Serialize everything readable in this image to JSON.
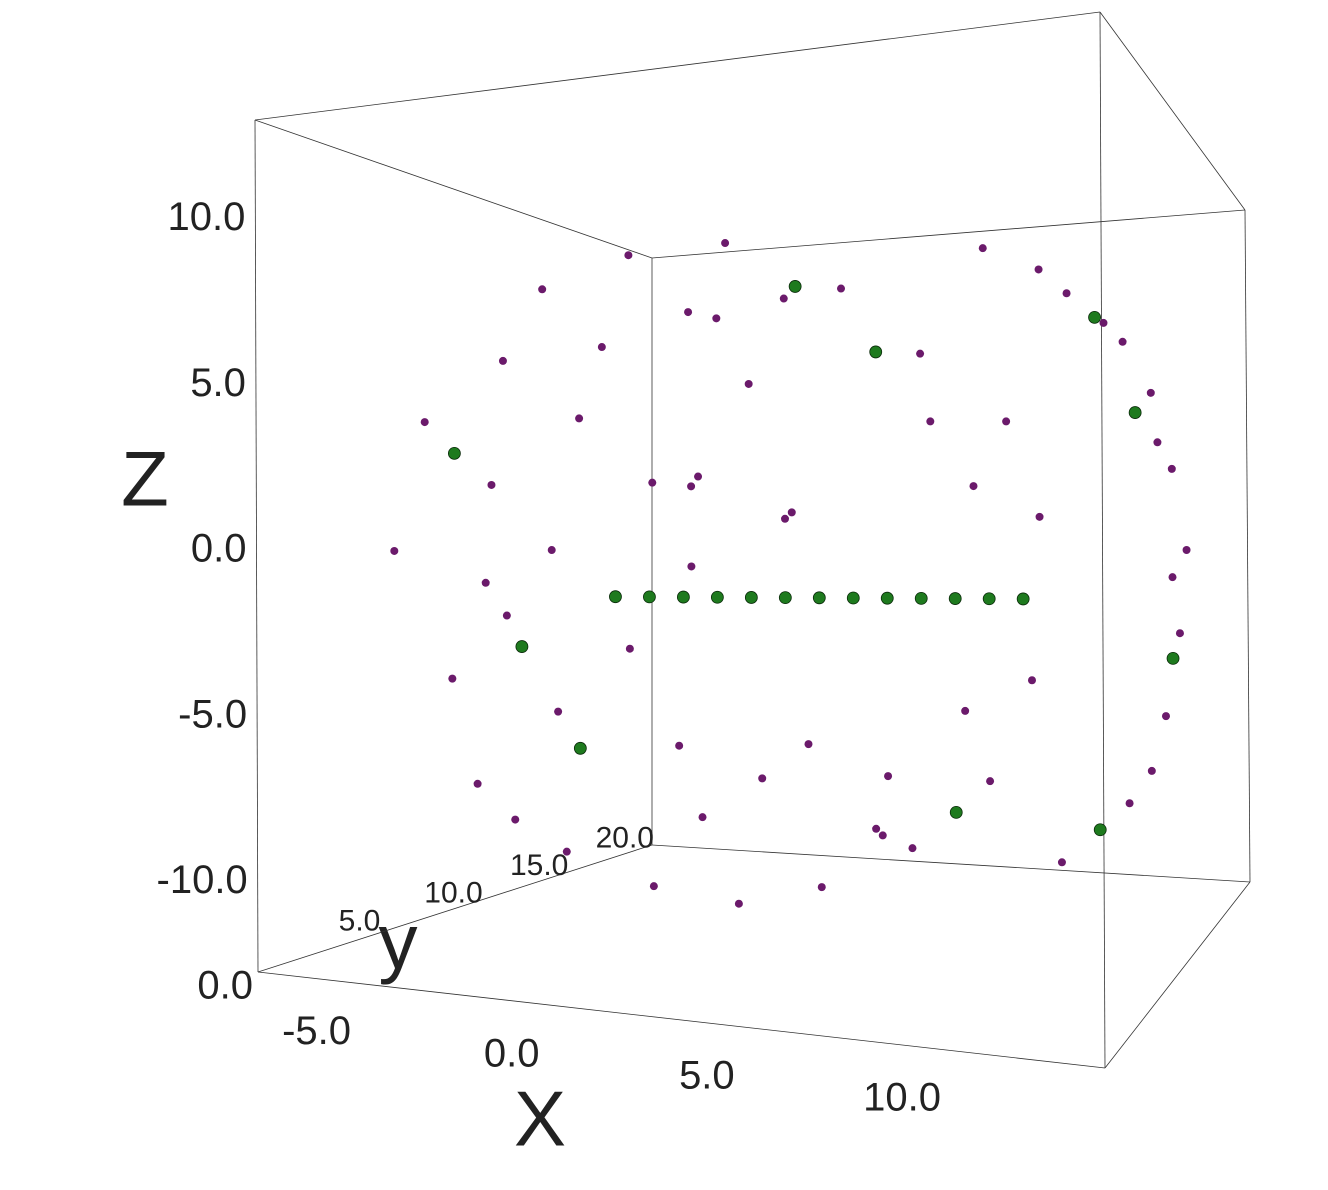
{
  "chart_data": {
    "type": "scatter3d",
    "xlabel": "X",
    "ylabel": "y",
    "zlabel": "Z",
    "xlim": [
      -6.5,
      15.2
    ],
    "ylim": [
      0,
      23
    ],
    "zlim": [
      -12.7,
      13
    ],
    "xticks": [
      {
        "value": -5,
        "label": "-5.0"
      },
      {
        "value": 0,
        "label": "0.0"
      },
      {
        "value": 5,
        "label": "5.0"
      },
      {
        "value": 10,
        "label": "10.0"
      }
    ],
    "yticks": [
      {
        "value": 0,
        "label": "0.0"
      },
      {
        "value": 5,
        "label": "5.0"
      },
      {
        "value": 10,
        "label": "10.0"
      },
      {
        "value": 15,
        "label": "15.0"
      },
      {
        "value": 20,
        "label": "20.0"
      }
    ],
    "zticks": [
      {
        "value": -10,
        "label": "-10.0"
      },
      {
        "value": -5,
        "label": "-5.0"
      },
      {
        "value": 0,
        "label": "0.0"
      },
      {
        "value": 5,
        "label": "5.0"
      },
      {
        "value": 10,
        "label": "10.0"
      }
    ],
    "series": [
      {
        "color": "#6b1a6b",
        "x": [
          -4.2,
          -3.8,
          -3.5,
          -2.5,
          -2,
          -1,
          0,
          1,
          2,
          3,
          4,
          6,
          6,
          8,
          8,
          10,
          10,
          11,
          11,
          -2,
          -2,
          -1,
          0,
          0,
          1,
          1,
          2,
          2,
          3,
          4,
          4,
          5,
          7,
          8,
          9,
          9,
          -3,
          -1,
          3,
          5,
          6,
          8,
          10,
          12,
          13,
          13.5,
          13.5,
          13,
          12,
          10,
          9,
          11,
          12.5,
          13,
          12.5,
          2,
          2.2,
          4,
          4.2,
          2,
          6,
          6.2,
          2
        ],
        "y": [
          3,
          4,
          5,
          6,
          3,
          5,
          4,
          6,
          5,
          8,
          6,
          9,
          7,
          10,
          9,
          12,
          10,
          12,
          11,
          4,
          5,
          6,
          3,
          5,
          6,
          4,
          7,
          5,
          6,
          7,
          8,
          9,
          10,
          11,
          11,
          12,
          6,
          3,
          5,
          7,
          22,
          22,
          23,
          22,
          21,
          21,
          20,
          20,
          19,
          18,
          22,
          22,
          21,
          21,
          20,
          8,
          8,
          10,
          10,
          8,
          12,
          12,
          10
        ],
        "z": [
          0,
          4,
          -4,
          6,
          -7,
          8,
          -9,
          9,
          -10,
          9.5,
          -10.5,
          8,
          -10,
          6,
          -9,
          4,
          -7,
          1,
          -4,
          2,
          -2,
          -5,
          0,
          4,
          -3,
          6,
          -6,
          2,
          -8,
          5,
          -7,
          -6,
          -7,
          4,
          -5,
          2,
          -1,
          -8,
          7,
          7.5,
          12,
          11,
          9,
          6,
          3,
          0,
          -3,
          -6,
          -9,
          -11,
          10,
          8,
          4,
          -1,
          -8,
          2,
          2.3,
          1,
          1.2,
          -0.5,
          -9,
          -9.2,
          7.5
        ]
      },
      {
        "color": "#1e7a1e",
        "x": [
          -1,
          0,
          1,
          2,
          3,
          4,
          5,
          6,
          7,
          8,
          9,
          10,
          11,
          -3,
          0,
          5,
          9,
          12,
          13,
          11,
          7,
          -2,
          10
        ],
        "y": [
          10,
          10,
          10,
          10,
          10,
          10,
          10,
          10,
          10,
          10,
          10,
          10,
          10,
          4,
          5,
          8,
          10,
          20,
          21,
          19,
          9,
          6,
          22
        ],
        "z": [
          -1.5,
          -1.5,
          -1.5,
          -1.5,
          -1.5,
          -1.5,
          -1.5,
          -1.5,
          -1.5,
          -1.5,
          -1.5,
          -1.5,
          -1.5,
          3,
          -6,
          8,
          -8,
          5,
          -4,
          -10,
          6,
          -3,
          9
        ]
      }
    ]
  }
}
